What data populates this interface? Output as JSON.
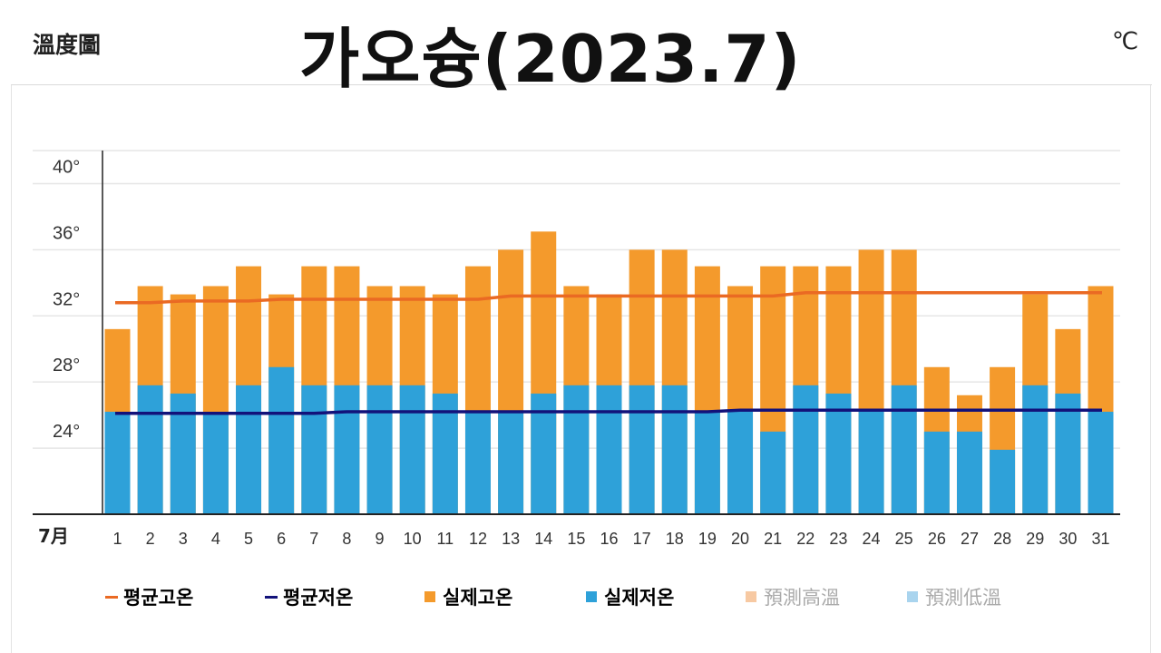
{
  "header": {
    "left_label": "溫度圖",
    "title": "가오슝(2023.7)",
    "unit": "℃"
  },
  "legend": [
    {
      "label": "평균고온",
      "kind": "line",
      "color": "#ea6a23",
      "muted": false
    },
    {
      "label": "평균저온",
      "kind": "line",
      "color": "#12127a",
      "muted": false
    },
    {
      "label": "실제고온",
      "kind": "square",
      "color": "#f49a2c",
      "muted": false
    },
    {
      "label": "실제저온",
      "kind": "square",
      "color": "#2ea1d9",
      "muted": false
    },
    {
      "label": "預測高溫",
      "kind": "square",
      "color": "#f7c9a2",
      "muted": true
    },
    {
      "label": "預測低溫",
      "kind": "square",
      "color": "#a9d4ee",
      "muted": true
    }
  ],
  "chart_data": {
    "type": "bar",
    "x_label": "7月",
    "categories": [
      "1",
      "2",
      "3",
      "4",
      "5",
      "6",
      "7",
      "8",
      "9",
      "10",
      "11",
      "12",
      "13",
      "14",
      "15",
      "16",
      "17",
      "18",
      "19",
      "20",
      "21",
      "22",
      "23",
      "24",
      "25",
      "26",
      "27",
      "28",
      "29",
      "30",
      "31"
    ],
    "y_ticks": [
      "40°",
      "36°",
      "32°",
      "28°",
      "24°"
    ],
    "ylim": [
      20,
      42
    ],
    "grid": true,
    "series": [
      {
        "name": "실제고온",
        "type": "bar",
        "color": "#f49a2c",
        "values": [
          31.2,
          33.8,
          33.3,
          33.8,
          35.0,
          33.3,
          35.0,
          35.0,
          33.8,
          33.8,
          33.3,
          35.0,
          36.0,
          37.1,
          33.8,
          33.3,
          36.0,
          36.0,
          35.0,
          33.8,
          35.0,
          35.0,
          35.0,
          36.0,
          36.0,
          28.9,
          27.2,
          28.9,
          33.3,
          31.2,
          33.8
        ]
      },
      {
        "name": "실제저온",
        "type": "bar",
        "color": "#2ea1d9",
        "values": [
          26.2,
          27.8,
          27.3,
          26.2,
          27.8,
          28.9,
          27.8,
          27.8,
          27.8,
          27.8,
          27.3,
          26.2,
          26.2,
          27.3,
          27.8,
          27.8,
          27.8,
          27.8,
          26.2,
          26.2,
          25.0,
          27.8,
          27.3,
          26.2,
          27.8,
          25.0,
          25.0,
          23.9,
          27.8,
          27.3,
          26.2
        ]
      },
      {
        "name": "평균고온",
        "type": "line",
        "color": "#ea6a23",
        "values": [
          32.8,
          32.8,
          32.9,
          32.9,
          32.9,
          33.0,
          33.0,
          33.0,
          33.0,
          33.0,
          33.0,
          33.0,
          33.2,
          33.2,
          33.2,
          33.2,
          33.2,
          33.2,
          33.2,
          33.2,
          33.2,
          33.4,
          33.4,
          33.4,
          33.4,
          33.4,
          33.4,
          33.4,
          33.4,
          33.4,
          33.4
        ]
      },
      {
        "name": "평균저온",
        "type": "line",
        "color": "#12127a",
        "values": [
          26.1,
          26.1,
          26.1,
          26.1,
          26.1,
          26.1,
          26.1,
          26.2,
          26.2,
          26.2,
          26.2,
          26.2,
          26.2,
          26.2,
          26.2,
          26.2,
          26.2,
          26.2,
          26.2,
          26.3,
          26.3,
          26.3,
          26.3,
          26.3,
          26.3,
          26.3,
          26.3,
          26.3,
          26.3,
          26.3,
          26.3
        ]
      }
    ],
    "colors": {
      "grid": "#e6e6e6",
      "axis": "#222222"
    }
  }
}
